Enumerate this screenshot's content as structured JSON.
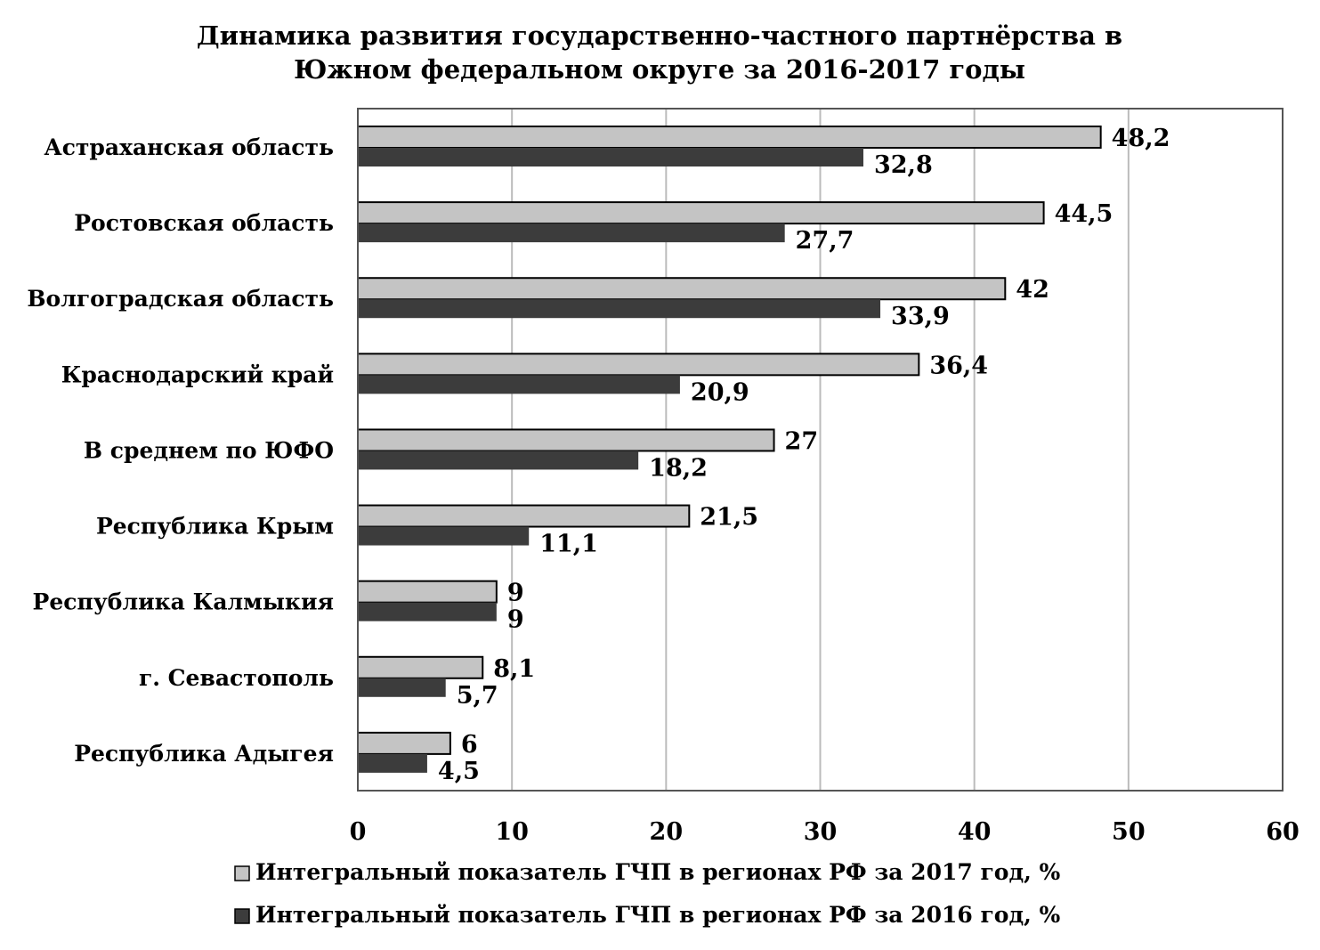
{
  "chart_data": {
    "type": "bar",
    "orientation": "horizontal",
    "title": [
      "Динамика развития государственно-частного партнёрства в",
      "Южном федеральном округе за 2016-2017 годы"
    ],
    "categories": [
      "Астраханская область",
      "Ростовская область",
      "Волгоградская область",
      "Краснодарский край",
      "В среднем по ЮФО",
      "Республика Крым",
      "Республика Калмыкия",
      "г. Севастополь",
      "Республика Адыгея"
    ],
    "series": [
      {
        "name": "Интегральный показатель ГЧП в регионах РФ за 2017 год, %",
        "color": "#c4c4c4",
        "values": [
          48.2,
          44.5,
          42,
          36.4,
          27,
          21.5,
          9,
          8.1,
          6
        ],
        "labels": [
          "48,2",
          "44,5",
          "42",
          "36,4",
          "27",
          "21,5",
          "9",
          "8,1",
          "6"
        ]
      },
      {
        "name": "Интегральный показатель ГЧП в регионах РФ за 2016 год, %",
        "color": "#3c3c3c",
        "values": [
          32.8,
          27.7,
          33.9,
          20.9,
          18.2,
          11.1,
          9,
          5.7,
          4.5
        ],
        "labels": [
          "32,8",
          "27,7",
          "33,9",
          "20,9",
          "18,2",
          "11,1",
          "9",
          "5,7",
          "4,5"
        ]
      }
    ],
    "xlim": [
      0,
      60
    ],
    "xticks": [
      0,
      10,
      20,
      30,
      40,
      50,
      60
    ],
    "xtick_labels": [
      "0",
      "10",
      "20",
      "30",
      "40",
      "50",
      "60"
    ],
    "grid": true,
    "legend_position": "bottom"
  }
}
